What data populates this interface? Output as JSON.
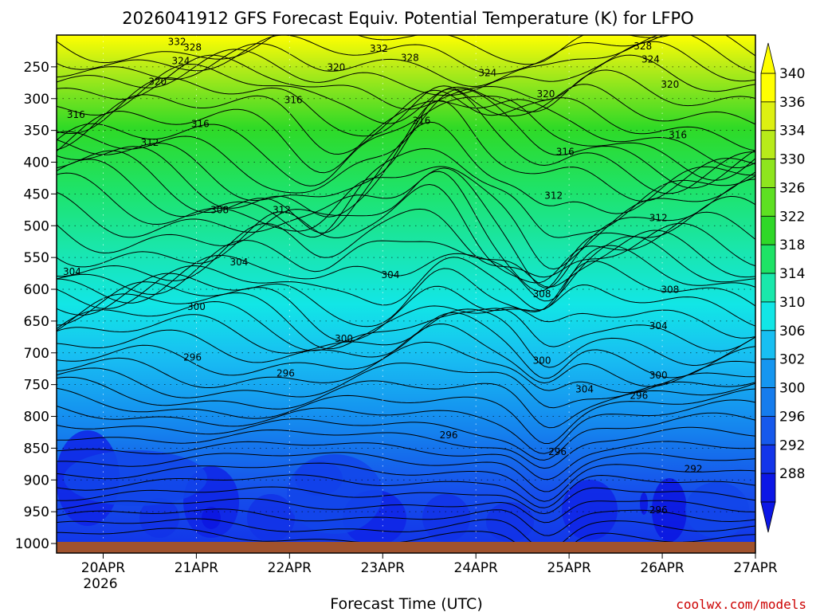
{
  "chart_data": {
    "type": "heatmap",
    "title": "2026041912 GFS Forecast Equiv. Potential Temperature (K) for LFPO",
    "xlabel": "Forecast Time (UTC)",
    "ylabel": "",
    "x_ticks": [
      "20APR",
      "21APR",
      "22APR",
      "23APR",
      "24APR",
      "25APR",
      "26APR",
      "27APR"
    ],
    "x_year_label": "2026",
    "x_range": [
      "2026-04-19T12:00Z",
      "2026-04-27T00:00Z"
    ],
    "y_ticks": [
      250,
      300,
      350,
      400,
      450,
      500,
      550,
      600,
      650,
      700,
      750,
      800,
      850,
      900,
      950,
      1000
    ],
    "y_range": [
      200,
      1015
    ],
    "y_unit": "hPa",
    "y_reversed": true,
    "colorbar": {
      "levels": [
        340,
        336,
        334,
        330,
        326,
        322,
        318,
        314,
        310,
        306,
        302,
        300,
        296,
        292,
        288
      ],
      "colors": [
        "#ffff00",
        "#ddf012",
        "#b8eb1a",
        "#8ee51e",
        "#5ee022",
        "#2fd828",
        "#1ee366",
        "#19e8ab",
        "#12e6e6",
        "#18bff2",
        "#1596f0",
        "#157ced",
        "#1659ec",
        "#1335ea",
        "#0c17e6"
      ],
      "extend": "both"
    },
    "contour_labels": [
      {
        "text": "332",
        "time": "2026-04-20T19:00Z",
        "p": 213
      },
      {
        "text": "328",
        "time": "2026-04-20T23:00Z",
        "p": 222
      },
      {
        "text": "332",
        "time": "2026-04-22T23:00Z",
        "p": 224
      },
      {
        "text": "328",
        "time": "2026-04-25T19:00Z",
        "p": 220
      },
      {
        "text": "324",
        "time": "2026-04-20T20:00Z",
        "p": 243
      },
      {
        "text": "328",
        "time": "2026-04-23T07:00Z",
        "p": 238
      },
      {
        "text": "324",
        "time": "2026-04-25T21:00Z",
        "p": 241
      },
      {
        "text": "320",
        "time": "2026-04-22T12:00Z",
        "p": 253
      },
      {
        "text": "324",
        "time": "2026-04-24T03:00Z",
        "p": 262
      },
      {
        "text": "320",
        "time": "2026-04-20T14:00Z",
        "p": 276
      },
      {
        "text": "320",
        "time": "2026-04-26T02:00Z",
        "p": 280
      },
      {
        "text": "316",
        "time": "2026-04-22T01:00Z",
        "p": 305
      },
      {
        "text": "320",
        "time": "2026-04-24T18:00Z",
        "p": 295
      },
      {
        "text": "316",
        "time": "2026-04-19T17:00Z",
        "p": 328
      },
      {
        "text": "316",
        "time": "2026-04-21T01:00Z",
        "p": 342
      },
      {
        "text": "316",
        "time": "2026-04-23T10:00Z",
        "p": 337
      },
      {
        "text": "316",
        "time": "2026-04-26T04:00Z",
        "p": 360
      },
      {
        "text": "312",
        "time": "2026-04-20T12:00Z",
        "p": 372
      },
      {
        "text": "316",
        "time": "2026-04-24T23:00Z",
        "p": 386
      },
      {
        "text": "312",
        "time": "2026-04-24T20:00Z",
        "p": 455
      },
      {
        "text": "308",
        "time": "2026-04-21T06:00Z",
        "p": 478
      },
      {
        "text": "312",
        "time": "2026-04-21T22:00Z",
        "p": 478
      },
      {
        "text": "312",
        "time": "2026-04-25T23:00Z",
        "p": 490
      },
      {
        "text": "304",
        "time": "2026-04-19T16:00Z",
        "p": 575
      },
      {
        "text": "304",
        "time": "2026-04-21T11:00Z",
        "p": 560
      },
      {
        "text": "304",
        "time": "2026-04-23T02:00Z",
        "p": 580
      },
      {
        "text": "308",
        "time": "2026-04-24T17:00Z",
        "p": 610
      },
      {
        "text": "308",
        "time": "2026-04-26T02:00Z",
        "p": 603
      },
      {
        "text": "300",
        "time": "2026-04-21T00:00Z",
        "p": 630
      },
      {
        "text": "304",
        "time": "2026-04-25T23:00Z",
        "p": 660
      },
      {
        "text": "300",
        "time": "2026-04-22T14:00Z",
        "p": 680
      },
      {
        "text": "296",
        "time": "2026-04-20T23:00Z",
        "p": 710
      },
      {
        "text": "300",
        "time": "2026-04-24T17:00Z",
        "p": 715
      },
      {
        "text": "296",
        "time": "2026-04-21T23:00Z",
        "p": 735
      },
      {
        "text": "300",
        "time": "2026-04-25T23:00Z",
        "p": 738
      },
      {
        "text": "304",
        "time": "2026-04-25T04:00Z",
        "p": 760
      },
      {
        "text": "296",
        "time": "2026-04-25T18:00Z",
        "p": 770
      },
      {
        "text": "296",
        "time": "2026-04-23T17:00Z",
        "p": 832
      },
      {
        "text": "296",
        "time": "2026-04-24T21:00Z",
        "p": 858
      },
      {
        "text": "292",
        "time": "2026-04-26T08:00Z",
        "p": 885
      },
      {
        "text": "296",
        "time": "2026-04-25T23:00Z",
        "p": 950
      }
    ]
  },
  "credit": "coolwx.com/models",
  "colors": {
    "ground": "#a0522d",
    "credit": "#cc0000"
  }
}
